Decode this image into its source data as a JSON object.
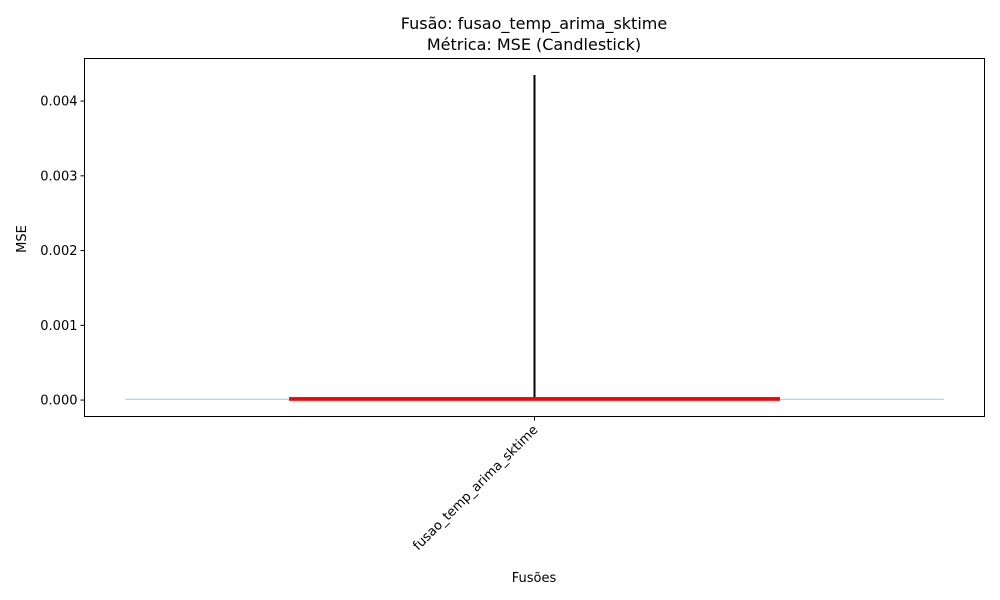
{
  "chart_data": {
    "type": "candlestick",
    "title": "Fusão: fusao_temp_arima_sktime",
    "subtitle": "Métrica: MSE (Candlestick)",
    "xlabel": "Fusões",
    "ylabel": "MSE",
    "categories": [
      "fusao_temp_arima_sktime"
    ],
    "ylim": [
      -0.00022,
      0.00457
    ],
    "yticks": [
      0.0,
      0.001,
      0.002,
      0.003,
      0.004
    ],
    "ytick_labels": [
      "0.000",
      "0.001",
      "0.002",
      "0.003",
      "0.004"
    ],
    "candles": [
      {
        "category": "fusao_temp_arima_sktime",
        "open": 1e-05,
        "close": 2e-05,
        "low": 1e-05,
        "high": 0.00435
      }
    ],
    "reference_line": {
      "value": 1e-05,
      "color": "#87ceeb"
    },
    "colors": {
      "body": "#ff0000",
      "wick": "#000000",
      "frame": "#000000"
    },
    "grid": false
  }
}
